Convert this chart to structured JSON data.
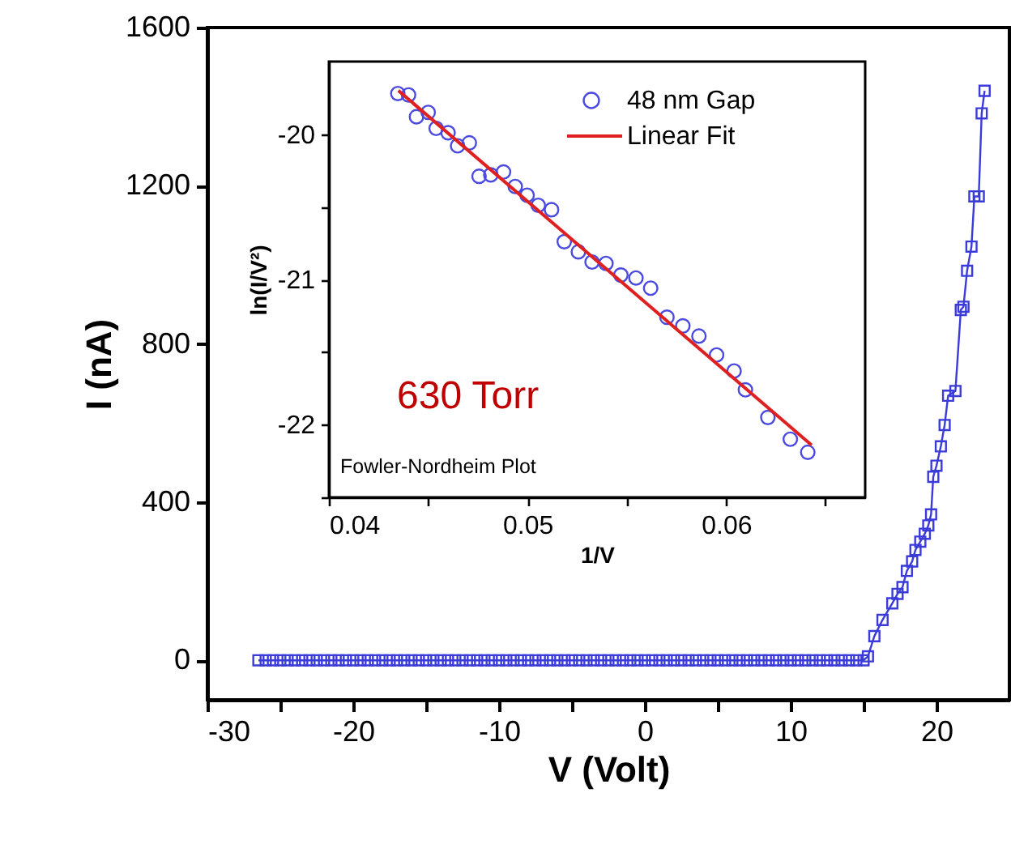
{
  "chart_data": [
    {
      "type": "line",
      "xlabel": "V (Volt)",
      "ylabel": "I (nA)",
      "xlim": [
        -30,
        25
      ],
      "ylim": [
        -100,
        1600
      ],
      "xticks": [
        -30,
        {
          "value": -25,
          "label": null
        },
        -20,
        {
          "value": -15,
          "label": null
        },
        -10,
        {
          "value": -5,
          "label": null
        },
        0,
        {
          "value": 5,
          "label": null
        },
        10,
        {
          "value": 15,
          "label": null
        },
        20
      ],
      "yticks": [
        0,
        400,
        800,
        1200,
        1600
      ],
      "marker": "square",
      "series": [
        {
          "color": "#3b3bd9",
          "x": [
            -26.5,
            -26,
            -25.5,
            -25,
            -24.5,
            -24,
            -23.5,
            -23,
            -22.5,
            -22,
            -21.5,
            -21,
            -20.5,
            -20,
            -19.5,
            -19,
            -18.5,
            -18,
            -17.5,
            -17,
            -16.5,
            -16,
            -15.5,
            -15,
            -14.5,
            -14,
            -13.5,
            -13,
            -12.5,
            -12,
            -11.5,
            -11,
            -10.5,
            -10,
            -9.5,
            -9,
            -8.5,
            -8,
            -7.5,
            -7,
            -6.5,
            -6,
            -5.5,
            -5,
            -4.5,
            -4,
            -3.5,
            -3,
            -2.5,
            -2,
            -1.5,
            -1,
            -0.5,
            0,
            0.5,
            1,
            1.5,
            2,
            2.5,
            3,
            3.5,
            4,
            4.5,
            5,
            5.5,
            6,
            6.5,
            7,
            7.5,
            8,
            8.5,
            9,
            9.5,
            10,
            10.5,
            11,
            11.5,
            12,
            12.5,
            13,
            13.5,
            14,
            14.5,
            15,
            15.3,
            15.74,
            16.3,
            16.97,
            17.33,
            17.67,
            17.97,
            18.33,
            18.56,
            18.89,
            19.2,
            19.44,
            19.63,
            19.78,
            20.0,
            20.3,
            20.56,
            20.8,
            21.3,
            21.67,
            21.85,
            22.1,
            22.4,
            22.6,
            22.9,
            23.1,
            23.3
          ],
          "values": [
            0,
            0,
            0,
            0,
            0,
            0,
            0,
            0,
            0,
            0,
            0,
            0,
            0,
            0,
            0,
            0,
            0,
            0,
            0,
            0,
            0,
            0,
            0,
            0,
            0,
            0,
            0,
            0,
            0,
            0,
            0,
            0,
            0,
            0,
            0,
            0,
            0,
            0,
            0,
            0,
            0,
            0,
            0,
            0,
            0,
            0,
            0,
            0,
            0,
            0,
            0,
            0,
            0,
            0,
            0,
            0,
            0,
            0,
            0,
            0,
            0,
            0,
            0,
            0,
            0,
            0,
            0,
            0,
            0,
            0,
            0,
            0,
            0,
            0,
            0,
            0,
            0,
            0,
            0,
            0,
            0,
            0,
            0,
            0,
            10,
            61,
            102,
            144,
            168,
            185,
            226,
            250,
            279,
            300,
            320,
            341,
            369,
            464,
            492,
            541,
            595,
            669,
            681,
            886,
            894,
            985,
            1046,
            1173,
            1173,
            1383,
            1440
          ]
        }
      ]
    },
    {
      "type": "scatter",
      "xlabel": "1/V",
      "ylabel": "ln(I/V²)",
      "xlim": [
        0.04,
        0.067
      ],
      "ylim": [
        -22.5,
        -19.5
      ],
      "xticks": [
        0.04,
        {
          "value": 0.045,
          "label": null
        },
        0.05,
        {
          "value": 0.055,
          "label": null
        },
        0.06,
        {
          "value": 0.065,
          "label": null
        }
      ],
      "yticks": [
        {
          "value": -22.5,
          "label": null
        },
        -22,
        {
          "value": -21.5,
          "label": null
        },
        -21,
        {
          "value": -20.5,
          "label": null
        },
        -20
      ],
      "legend": "top right",
      "annotations": [
        "630 Torr",
        "Fowler-Nordheim Plot"
      ],
      "series": [
        {
          "name": "48 nm Gap",
          "color": "#4a4ae0",
          "marker": "circle",
          "x": [
            0.04347,
            0.04401,
            0.04441,
            0.045,
            0.0454,
            0.046,
            0.04648,
            0.04707,
            0.04756,
            0.04815,
            0.04879,
            0.04938,
            0.04998,
            0.05054,
            0.05121,
            0.05185,
            0.05256,
            0.05325,
            0.05395,
            0.0547,
            0.05546,
            0.0562,
            0.05702,
            0.05782,
            0.05863,
            0.05952,
            0.0604,
            0.06097,
            0.0621,
            0.06323,
            0.06411
          ],
          "values": [
            -19.72,
            -19.73,
            -19.88,
            -19.85,
            -19.96,
            -19.99,
            -20.08,
            -20.06,
            -20.29,
            -20.28,
            -20.26,
            -20.36,
            -20.42,
            -20.49,
            -20.52,
            -20.74,
            -20.81,
            -20.88,
            -20.89,
            -20.97,
            -20.99,
            -21.06,
            -21.26,
            -21.32,
            -21.39,
            -21.52,
            -21.63,
            -21.76,
            -21.95,
            -22.1,
            -22.19
          ]
        },
        {
          "name": "Linear Fit",
          "type": "line",
          "color": "#e02020",
          "x": [
            0.0435,
            0.0643
          ],
          "values": [
            -19.7,
            -22.14
          ]
        }
      ]
    }
  ]
}
